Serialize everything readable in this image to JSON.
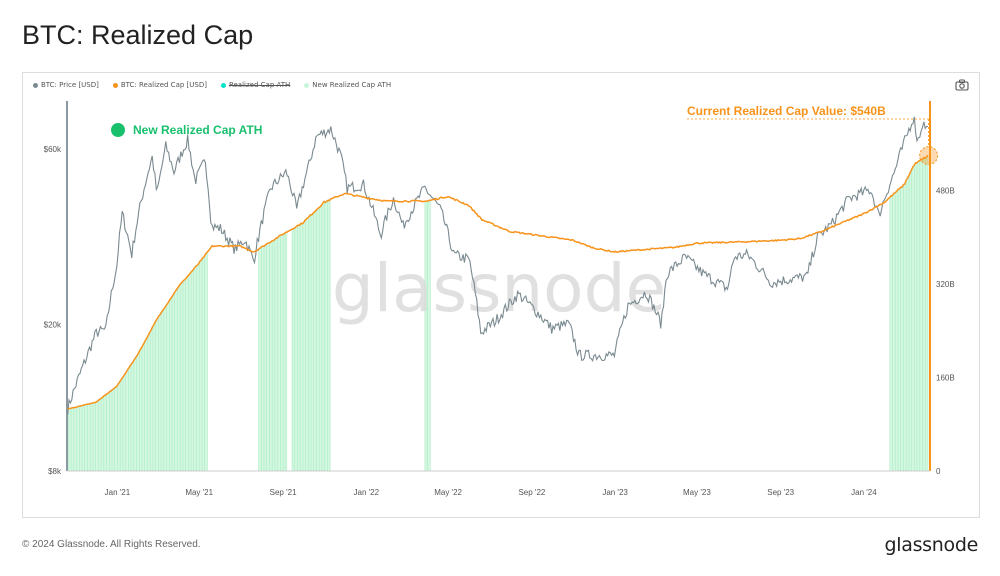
{
  "page": {
    "title": "BTC: Realized Cap",
    "copyright": "© 2024 Glassnode. All Rights Reserved.",
    "brand": "glassnode",
    "watermark": "glassnode"
  },
  "colors": {
    "price": "#7a8a90",
    "realized_cap": "#f7931a",
    "ath_marker": "#00e2c8",
    "ath_fill": "#c8f5d8",
    "annotation_green": "#18c06e",
    "annotation_orange": "#f7931a"
  },
  "legend": [
    {
      "label": "BTC: Price [USD]",
      "color": "#7a8a90",
      "strike": false
    },
    {
      "label": "BTC: Realized Cap [USD]",
      "color": "#f7931a",
      "strike": false
    },
    {
      "label": "Realized Cap ATH",
      "color": "#00e2c8",
      "strike": true
    },
    {
      "label": "New Realized Cap ATH",
      "color": "#c8f5d8",
      "strike": false
    }
  ],
  "annotations": {
    "ath_label": "New Realized Cap ATH",
    "current_value": "Current Realized Cap Value: $540B"
  },
  "icons": {
    "camera": "camera-icon"
  },
  "chart_data": {
    "type": "line",
    "title": "BTC: Realized Cap",
    "x_ticks": [
      "Jan '21",
      "May '21",
      "Sep '21",
      "Jan '22",
      "May '22",
      "Sep '22",
      "Jan '23",
      "May '23",
      "Sep '23",
      "Jan '24"
    ],
    "y_left": {
      "scale": "log",
      "ticks": [
        "$8k",
        "$20k",
        "$60k"
      ],
      "tick_values": [
        8000,
        20000,
        60000
      ],
      "range": [
        8000,
        80000
      ]
    },
    "y_right": {
      "scale": "linear",
      "ticks": [
        "0",
        "160B",
        "320B",
        "480B"
      ],
      "tick_values": [
        0,
        160,
        320,
        480
      ],
      "range": [
        0,
        630
      ]
    },
    "date_range": [
      "2020-10-19",
      "2024-04-07"
    ],
    "series": [
      {
        "name": "BTC: Price [USD]",
        "axis": "left",
        "points": [
          [
            "2020-10-20",
            11800
          ],
          [
            "2020-11-01",
            13700
          ],
          [
            "2020-11-15",
            16000
          ],
          [
            "2020-12-01",
            19000
          ],
          [
            "2020-12-15",
            19400
          ],
          [
            "2020-12-31",
            28900
          ],
          [
            "2021-01-08",
            40000
          ],
          [
            "2021-01-22",
            31000
          ],
          [
            "2021-02-08",
            46000
          ],
          [
            "2021-02-21",
            57000
          ],
          [
            "2021-02-28",
            45000
          ],
          [
            "2021-03-13",
            61000
          ],
          [
            "2021-03-25",
            52000
          ],
          [
            "2021-04-14",
            63500
          ],
          [
            "2021-04-25",
            49000
          ],
          [
            "2021-05-10",
            56000
          ],
          [
            "2021-05-19",
            37000
          ],
          [
            "2021-06-01",
            36500
          ],
          [
            "2021-06-22",
            32000
          ],
          [
            "2021-07-07",
            34000
          ],
          [
            "2021-07-20",
            29800
          ],
          [
            "2021-08-14",
            47000
          ],
          [
            "2021-09-06",
            52000
          ],
          [
            "2021-09-21",
            41000
          ],
          [
            "2021-10-10",
            55000
          ],
          [
            "2021-10-20",
            65000
          ],
          [
            "2021-11-10",
            68000
          ],
          [
            "2021-11-25",
            57000
          ],
          [
            "2021-12-04",
            47000
          ],
          [
            "2021-12-28",
            48000
          ],
          [
            "2022-01-22",
            35000
          ],
          [
            "2022-02-10",
            44000
          ],
          [
            "2022-02-24",
            37000
          ],
          [
            "2022-03-28",
            47000
          ],
          [
            "2022-04-20",
            41000
          ],
          [
            "2022-05-09",
            31000
          ],
          [
            "2022-06-01",
            30000
          ],
          [
            "2022-06-18",
            19000
          ],
          [
            "2022-07-10",
            20500
          ],
          [
            "2022-08-12",
            24200
          ],
          [
            "2022-09-10",
            21500
          ],
          [
            "2022-09-30",
            19500
          ],
          [
            "2022-10-25",
            20100
          ],
          [
            "2022-11-09",
            16500
          ],
          [
            "2022-12-31",
            16500
          ],
          [
            "2023-01-20",
            22500
          ],
          [
            "2023-02-16",
            24500
          ],
          [
            "2023-03-10",
            20000
          ],
          [
            "2023-03-18",
            27500
          ],
          [
            "2023-04-14",
            30500
          ],
          [
            "2023-05-10",
            27500
          ],
          [
            "2023-06-15",
            25000
          ],
          [
            "2023-06-25",
            30500
          ],
          [
            "2023-07-14",
            31000
          ],
          [
            "2023-08-18",
            26000
          ],
          [
            "2023-09-15",
            26600
          ],
          [
            "2023-10-10",
            27000
          ],
          [
            "2023-10-25",
            34500
          ],
          [
            "2023-11-15",
            37500
          ],
          [
            "2023-12-10",
            44000
          ],
          [
            "2024-01-11",
            46500
          ],
          [
            "2024-01-23",
            39500
          ],
          [
            "2024-02-15",
            52000
          ],
          [
            "2024-03-05",
            66000
          ],
          [
            "2024-03-14",
            73500
          ],
          [
            "2024-03-20",
            62500
          ],
          [
            "2024-03-27",
            70500
          ],
          [
            "2024-04-05",
            67500
          ]
        ]
      },
      {
        "name": "BTC: Realized Cap [USD]",
        "axis": "right",
        "points": [
          [
            "2020-10-20",
            106
          ],
          [
            "2020-12-01",
            118
          ],
          [
            "2020-12-31",
            145
          ],
          [
            "2021-01-31",
            200
          ],
          [
            "2021-02-28",
            260
          ],
          [
            "2021-03-31",
            315
          ],
          [
            "2021-04-30",
            355
          ],
          [
            "2021-05-20",
            385
          ],
          [
            "2021-06-30",
            385
          ],
          [
            "2021-07-20",
            375
          ],
          [
            "2021-08-31",
            405
          ],
          [
            "2021-09-30",
            425
          ],
          [
            "2021-10-31",
            460
          ],
          [
            "2021-11-30",
            475
          ],
          [
            "2021-12-31",
            468
          ],
          [
            "2022-01-31",
            462
          ],
          [
            "2022-03-31",
            462
          ],
          [
            "2022-04-30",
            470
          ],
          [
            "2022-05-31",
            455
          ],
          [
            "2022-06-20",
            430
          ],
          [
            "2022-07-31",
            410
          ],
          [
            "2022-08-31",
            405
          ],
          [
            "2022-09-30",
            400
          ],
          [
            "2022-10-31",
            395
          ],
          [
            "2022-11-30",
            382
          ],
          [
            "2022-12-31",
            375
          ],
          [
            "2023-01-31",
            378
          ],
          [
            "2023-03-31",
            383
          ],
          [
            "2023-04-30",
            390
          ],
          [
            "2023-06-30",
            392
          ],
          [
            "2023-08-31",
            395
          ],
          [
            "2023-09-30",
            398
          ],
          [
            "2023-10-31",
            410
          ],
          [
            "2023-11-30",
            425
          ],
          [
            "2023-12-31",
            440
          ],
          [
            "2024-01-31",
            460
          ],
          [
            "2024-02-29",
            490
          ],
          [
            "2024-03-15",
            525
          ],
          [
            "2024-04-05",
            540
          ]
        ]
      }
    ],
    "ath_periods": [
      [
        "2020-10-21",
        "2021-05-14"
      ],
      [
        "2021-07-27",
        "2021-09-07"
      ],
      [
        "2021-09-14",
        "2021-11-10"
      ],
      [
        "2022-03-28",
        "2022-04-06"
      ],
      [
        "2024-02-08",
        "2024-04-05"
      ]
    ],
    "current_value_point": [
      "2024-04-05",
      540
    ]
  }
}
